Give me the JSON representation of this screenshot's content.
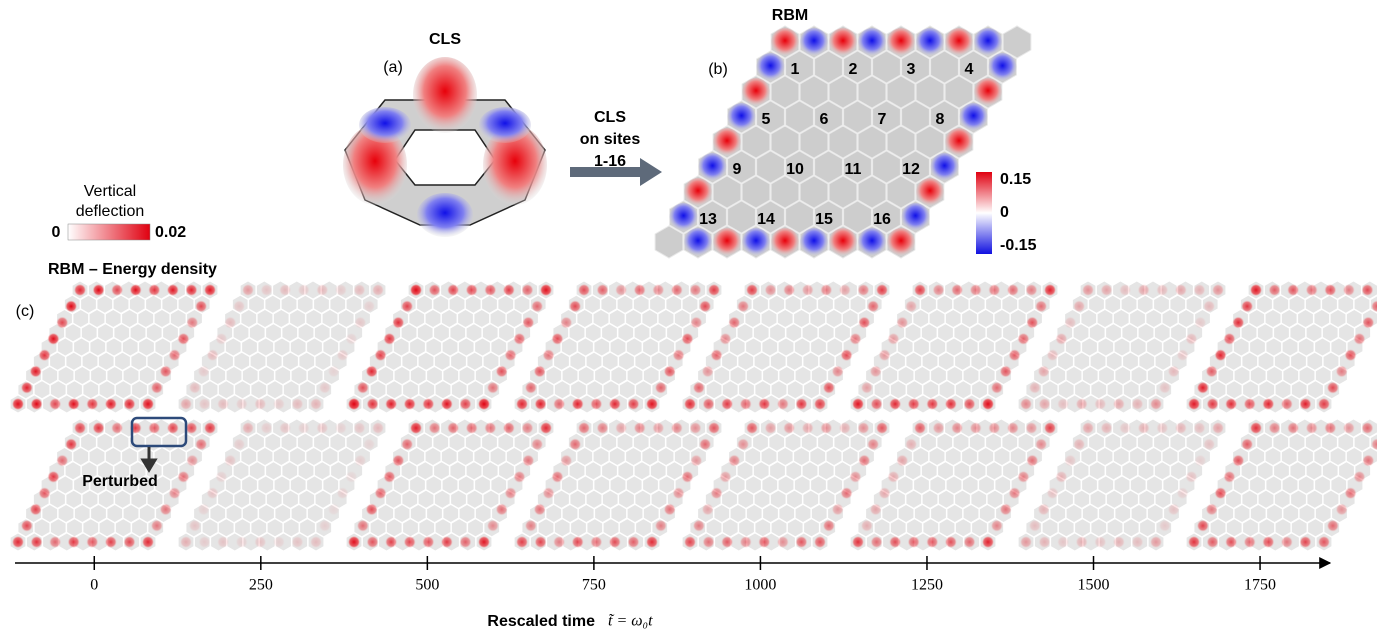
{
  "panel_a": {
    "label": "(a)",
    "title": "CLS"
  },
  "arrow_label": [
    "CLS",
    "on sites",
    "1-16"
  ],
  "deflection_colorbar": {
    "title": [
      "Vertical",
      "deflection"
    ],
    "ticks": [
      0,
      0.02
    ]
  },
  "panel_b": {
    "label": "(b)",
    "title": "RBM",
    "sites": [
      "1",
      "2",
      "3",
      "4",
      "5",
      "6",
      "7",
      "8",
      "9",
      "10",
      "11",
      "12",
      "13",
      "14",
      "15",
      "16"
    ],
    "colorbar": {
      "ticks": [
        {
          "value": 0.15,
          "label": "0.15"
        },
        0,
        {
          "value": -0.15,
          "label": "-0.15"
        }
      ]
    }
  },
  "panel_c": {
    "label": "(c)",
    "title": "RBM – Energy density",
    "annotation": "Perturbed",
    "xlabel": "Rescaled time",
    "xlabel_math": "t̃ = ω₀t",
    "xlim": [
      -119,
      1855
    ],
    "xticks": [
      0,
      250,
      500,
      750,
      1000,
      1250,
      1500,
      1750
    ]
  }
}
